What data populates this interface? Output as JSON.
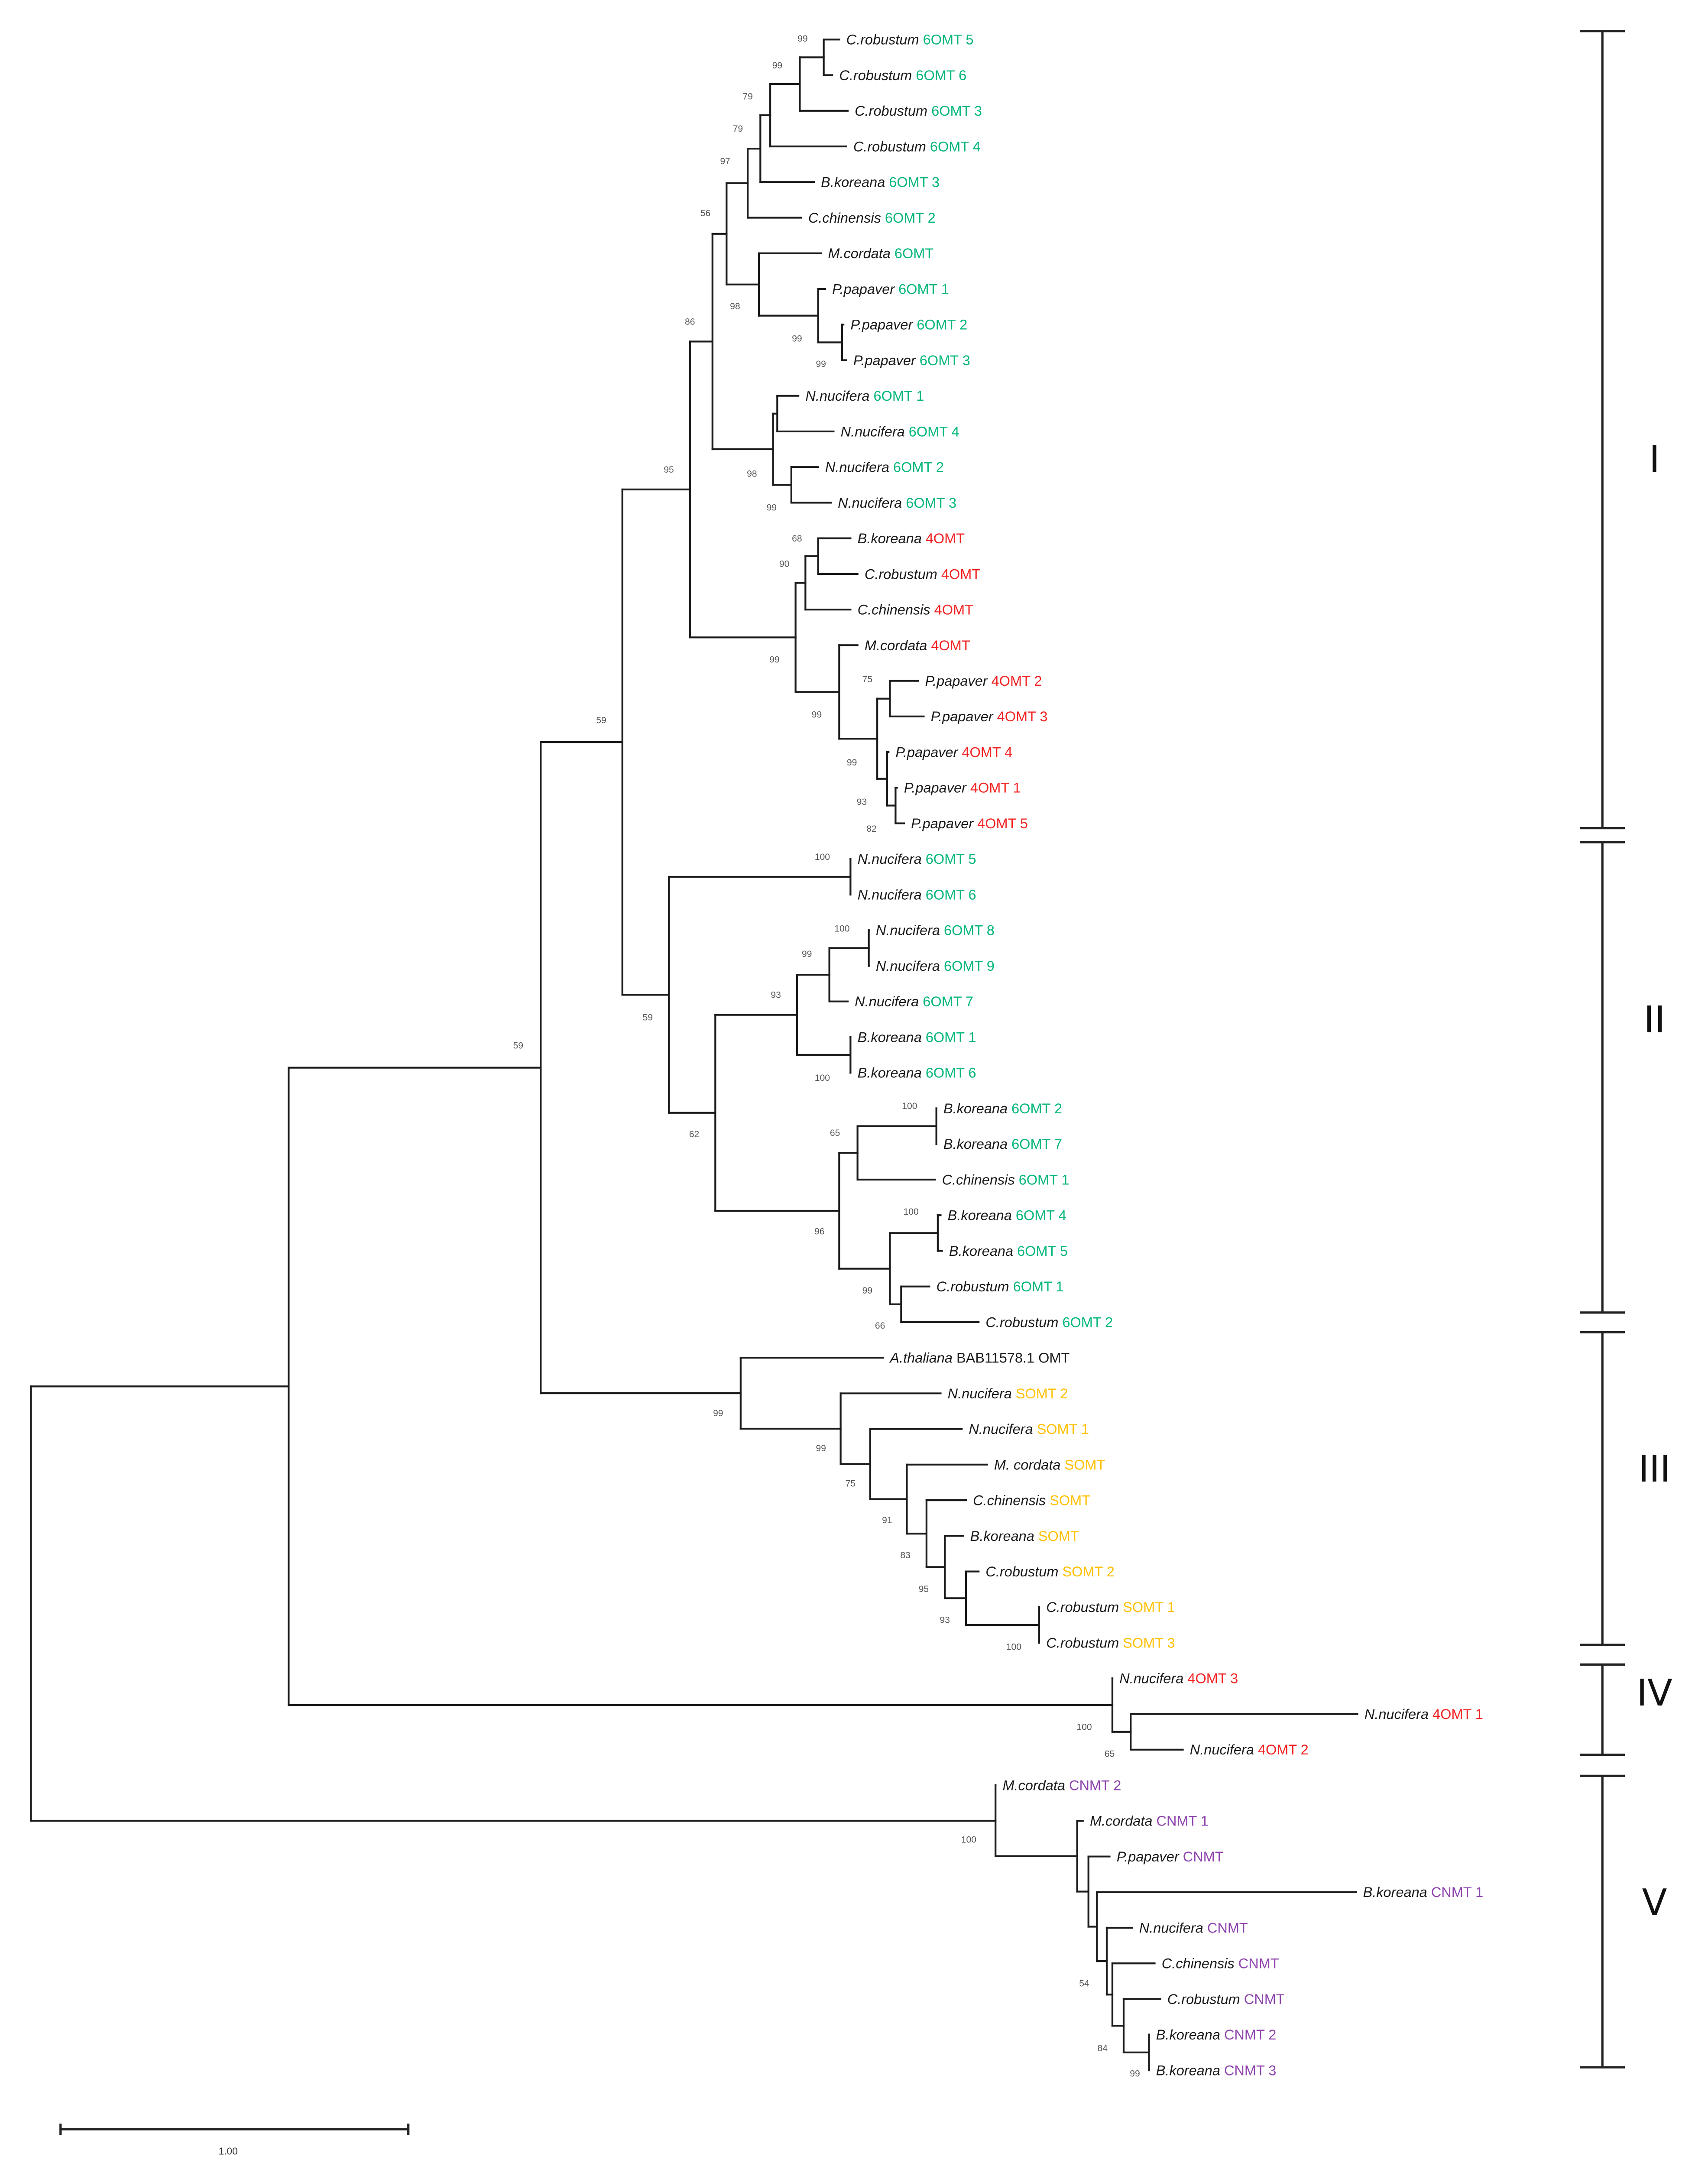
{
  "colors": {
    "6OMT": "#00b67a",
    "4OMT": "#f22222",
    "SOMT": "#ffc000",
    "CNMT": "#8e44ad",
    "other": "#1a1a1a"
  },
  "leaves": [
    {
      "species": "C.robustum",
      "gene": "6OMT 5",
      "group": "6OMT"
    },
    {
      "species": "C.robustum",
      "gene": "6OMT 6",
      "group": "6OMT"
    },
    {
      "species": "C.robustum",
      "gene": "6OMT 3",
      "group": "6OMT"
    },
    {
      "species": "C.robustum",
      "gene": "6OMT 4",
      "group": "6OMT"
    },
    {
      "species": "B.koreana",
      "gene": "6OMT 3",
      "group": "6OMT"
    },
    {
      "species": "C.chinensis",
      "gene": "6OMT 2",
      "group": "6OMT"
    },
    {
      "species": "M.cordata",
      "gene": "6OMT",
      "group": "6OMT"
    },
    {
      "species": "P.papaver",
      "gene": "6OMT 1",
      "group": "6OMT"
    },
    {
      "species": "P.papaver",
      "gene": "6OMT 2",
      "group": "6OMT"
    },
    {
      "species": "P.papaver",
      "gene": "6OMT 3",
      "group": "6OMT"
    },
    {
      "species": "N.nucifera",
      "gene": "6OMT 1",
      "group": "6OMT"
    },
    {
      "species": "N.nucifera",
      "gene": "6OMT 4",
      "group": "6OMT"
    },
    {
      "species": "N.nucifera",
      "gene": "6OMT 2",
      "group": "6OMT"
    },
    {
      "species": "N.nucifera",
      "gene": "6OMT 3",
      "group": "6OMT"
    },
    {
      "species": "B.koreana",
      "gene": "4OMT",
      "group": "4OMT"
    },
    {
      "species": "C.robustum",
      "gene": "4OMT",
      "group": "4OMT"
    },
    {
      "species": "C.chinensis",
      "gene": "4OMT",
      "group": "4OMT"
    },
    {
      "species": "M.cordata",
      "gene": "4OMT",
      "group": "4OMT"
    },
    {
      "species": "P.papaver",
      "gene": "4OMT 2",
      "group": "4OMT"
    },
    {
      "species": "P.papaver",
      "gene": "4OMT 3",
      "group": "4OMT"
    },
    {
      "species": "P.papaver",
      "gene": "4OMT 4",
      "group": "4OMT"
    },
    {
      "species": "P.papaver",
      "gene": "4OMT 1",
      "group": "4OMT"
    },
    {
      "species": "P.papaver",
      "gene": "4OMT 5",
      "group": "4OMT"
    },
    {
      "species": "N.nucifera",
      "gene": "6OMT 5",
      "group": "6OMT"
    },
    {
      "species": "N.nucifera",
      "gene": "6OMT 6",
      "group": "6OMT"
    },
    {
      "species": "N.nucifera",
      "gene": "6OMT 8",
      "group": "6OMT"
    },
    {
      "species": "N.nucifera",
      "gene": "6OMT 9",
      "group": "6OMT"
    },
    {
      "species": "N.nucifera",
      "gene": "6OMT 7",
      "group": "6OMT"
    },
    {
      "species": "B.koreana",
      "gene": "6OMT 1",
      "group": "6OMT"
    },
    {
      "species": "B.koreana",
      "gene": "6OMT 6",
      "group": "6OMT"
    },
    {
      "species": "B.koreana",
      "gene": "6OMT 2",
      "group": "6OMT"
    },
    {
      "species": "B.koreana",
      "gene": "6OMT 7",
      "group": "6OMT"
    },
    {
      "species": "C.chinensis",
      "gene": "6OMT 1",
      "group": "6OMT"
    },
    {
      "species": "B.koreana",
      "gene": "6OMT 4",
      "group": "6OMT"
    },
    {
      "species": "B.koreana",
      "gene": "6OMT 5",
      "group": "6OMT"
    },
    {
      "species": "C.robustum",
      "gene": "6OMT 1",
      "group": "6OMT"
    },
    {
      "species": "C.robustum",
      "gene": "6OMT 2",
      "group": "6OMT"
    },
    {
      "species": "A.thaliana",
      "gene": "BAB11578.1 OMT",
      "group": "other"
    },
    {
      "species": "N.nucifera",
      "gene": "SOMT 2",
      "group": "SOMT"
    },
    {
      "species": "N.nucifera",
      "gene": "SOMT 1",
      "group": "SOMT"
    },
    {
      "species": "M. cordata",
      "gene": "SOMT",
      "group": "SOMT"
    },
    {
      "species": "C.chinensis",
      "gene": "SOMT",
      "group": "SOMT"
    },
    {
      "species": "B.koreana",
      "gene": "SOMT",
      "group": "SOMT"
    },
    {
      "species": "C.robustum",
      "gene": "SOMT 2",
      "group": "SOMT"
    },
    {
      "species": "C.robustum",
      "gene": "SOMT 1",
      "group": "SOMT"
    },
    {
      "species": "C.robustum",
      "gene": "SOMT 3",
      "group": "SOMT"
    },
    {
      "species": "N.nucifera",
      "gene": "4OMT 3",
      "group": "4OMT"
    },
    {
      "species": "N.nucifera",
      "gene": "4OMT 1",
      "group": "4OMT"
    },
    {
      "species": "N.nucifera",
      "gene": "4OMT 2",
      "group": "4OMT"
    },
    {
      "species": "M.cordata",
      "gene": "CNMT 2",
      "group": "CNMT"
    },
    {
      "species": "M.cordata",
      "gene": "CNMT 1",
      "group": "CNMT"
    },
    {
      "species": "P.papaver",
      "gene": "CNMT",
      "group": "CNMT"
    },
    {
      "species": "B.koreana",
      "gene": "CNMT 1",
      "group": "CNMT"
    },
    {
      "species": "N.nucifera",
      "gene": "CNMT",
      "group": "CNMT"
    },
    {
      "species": "C.chinensis",
      "gene": "CNMT",
      "group": "CNMT"
    },
    {
      "species": "C.robustum",
      "gene": "CNMT",
      "group": "CNMT"
    },
    {
      "species": "B.koreana",
      "gene": "CNMT 2",
      "group": "CNMT"
    },
    {
      "species": "B.koreana",
      "gene": "CNMT 3",
      "group": "CNMT"
    }
  ],
  "bootstrap": {
    "Na": "99",
    "Nb": "99",
    "Nc": "79",
    "Nd": "79",
    "Ne": "97",
    "Nf": "56",
    "Ng": "98",
    "Nh": "99",
    "Ni": "99",
    "Nj": "86",
    "Nn": "98",
    "Nq": "99",
    "Nt": "68",
    "Ns": "90",
    "Nw": "75",
    "Nx": "93",
    "Ny": "82",
    "Nv": "99",
    "Nu": "99",
    "Nr": "99",
    "Nk": "95",
    "N2425": "100",
    "N100a": "100",
    "N99a": "99",
    "Nbk": "100",
    "N93": "93",
    "N100b": "100",
    "N65": "65",
    "N100c": "100",
    "N66": "66",
    "N99b": "99",
    "N96": "96",
    "N62": "62",
    "Nz": "59",
    "Nl": "59",
    "N100d": "100",
    "N93c": "93",
    "N95": "95",
    "N83": "83",
    "N91": "91",
    "N75": "75",
    "N99c": "99",
    "NIII": "99",
    "N59b": "59",
    "N65b": "65",
    "N100e": "100",
    "Nv7": "99",
    "Nv6": "84",
    "Nv4": "54",
    "N100f": "100"
  },
  "clades": [
    "I",
    "II",
    "III",
    "IV",
    "V"
  ],
  "scale_bar": {
    "label": "1.00",
    "length": 1.0
  }
}
